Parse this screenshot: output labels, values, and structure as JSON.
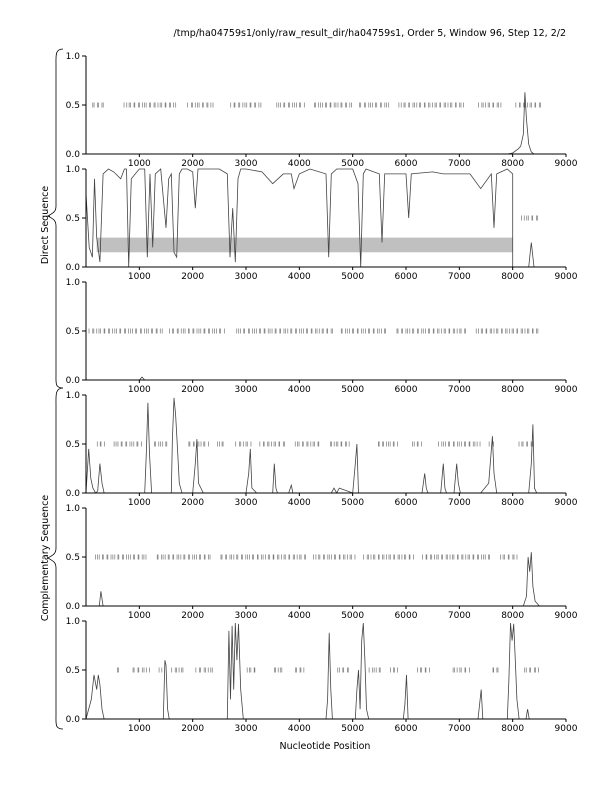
{
  "header": {
    "text": "/tmp/ha04759s1/only/raw_result_dir/ha04759s1, Order 5, Window 96, Step 12, 2/2"
  },
  "group_labels": {
    "top": "Direct Sequence",
    "bottom": "Complementary Sequence"
  },
  "xlabel": "Nucleotide Position",
  "colors": {
    "trace": "#444444",
    "frame": "#000000",
    "highlight": "#c0c0c0",
    "tick_marks": "#777777"
  },
  "chart_data": [
    {
      "type": "line",
      "panel": 1,
      "xlim": [
        0,
        9000
      ],
      "ylim": [
        0,
        1.0
      ],
      "xticks": [
        1000,
        2000,
        3000,
        4000,
        5000,
        6000,
        7000,
        8000,
        9000
      ],
      "yticks": [
        0.0,
        0.5,
        1.0
      ],
      "series": [
        {
          "x": [
            0,
            7900,
            8000,
            8100,
            8150,
            8200,
            8230,
            8260,
            8300,
            8350,
            8400,
            9000
          ],
          "y": [
            0,
            0,
            0.01,
            0.05,
            0.08,
            0.2,
            0.63,
            0.35,
            0.1,
            0.02,
            0,
            0
          ]
        }
      ],
      "tick_rows": [
        {
          "y": 0.5,
          "x_ranges": [
            [
              100,
              350
            ],
            [
              700,
              1700
            ],
            [
              1900,
              2400
            ],
            [
              2700,
              3300
            ],
            [
              3550,
              4100
            ],
            [
              4250,
              5000
            ],
            [
              5100,
              5700
            ],
            [
              5850,
              7100
            ],
            [
              7350,
              7800
            ],
            [
              8050,
              8550
            ]
          ]
        }
      ]
    },
    {
      "type": "line",
      "panel": 2,
      "xlim": [
        0,
        9000
      ],
      "ylim": [
        0,
        1.0
      ],
      "xticks": [
        1000,
        2000,
        3000,
        4000,
        5000,
        6000,
        7000,
        8000,
        9000
      ],
      "yticks": [
        0.0,
        0.5,
        1.0
      ],
      "highlight_band": {
        "x": [
          200,
          8000
        ],
        "y": [
          0.15,
          0.3
        ]
      },
      "series": [
        {
          "x": [
            0,
            60,
            120,
            160,
            200,
            260,
            320,
            420,
            520,
            650,
            720,
            760,
            800,
            850,
            1000,
            1100,
            1150,
            1200,
            1250,
            1300,
            1400,
            1500,
            1550,
            1600,
            1650,
            1700,
            1750,
            1800,
            1900,
            2000,
            2050,
            2100,
            2200,
            2500,
            2650,
            2700,
            2750,
            2800,
            2850,
            2900,
            3000,
            3300,
            3500,
            3700,
            3850,
            3900,
            4000,
            4200,
            4500,
            4550,
            4600,
            4700,
            5000,
            5100,
            5150,
            5200,
            5250,
            5500,
            5550,
            5600,
            6000,
            6050,
            6100,
            6500,
            6700,
            7200,
            7400,
            7600,
            7650,
            7700,
            7900,
            8000,
            8000,
            8100,
            8300,
            8350,
            8400,
            9000
          ],
          "y": [
            0.75,
            0.2,
            0.1,
            0.9,
            0.3,
            0.05,
            0.95,
            1.0,
            0.97,
            0.9,
            1.0,
            1.0,
            0.0,
            0.9,
            1.0,
            1.0,
            0.1,
            0.95,
            0.2,
            0.95,
            1.0,
            0.4,
            0.9,
            0.95,
            0.15,
            0.1,
            0.95,
            1.0,
            1.0,
            0.97,
            0.6,
            1.0,
            1.0,
            1.0,
            0.95,
            0.1,
            0.6,
            0.05,
            0.9,
            1.0,
            1.0,
            0.97,
            0.85,
            0.95,
            0.95,
            0.8,
            0.95,
            1.0,
            0.95,
            0.1,
            0.95,
            1.0,
            1.0,
            0.85,
            0.0,
            0.95,
            1.0,
            0.95,
            0.25,
            0.95,
            0.95,
            0.5,
            0.95,
            0.97,
            0.95,
            0.95,
            0.8,
            0.95,
            0.4,
            0.95,
            1.0,
            0.95,
            0.0,
            0.0,
            0.0,
            0.25,
            0.0,
            0.0
          ]
        }
      ],
      "tick_rows": [
        {
          "y": 0.5,
          "x_ranges": [
            [
              8150,
              8500
            ]
          ]
        }
      ]
    },
    {
      "type": "line",
      "panel": 3,
      "xlim": [
        0,
        9000
      ],
      "ylim": [
        0,
        1.0
      ],
      "xticks": [
        1000,
        2000,
        3000,
        4000,
        5000,
        6000,
        7000,
        8000,
        9000
      ],
      "yticks": [
        0.0,
        0.5,
        1.0
      ],
      "series": [
        {
          "x": [
            0,
            1000,
            1050,
            1100,
            9000
          ],
          "y": [
            0,
            0,
            0.03,
            0,
            0
          ]
        }
      ],
      "tick_rows": [
        {
          "y": 0.5,
          "x_ranges": [
            [
              50,
              1450
            ],
            [
              1550,
              2600
            ],
            [
              2800,
              4650
            ],
            [
              4750,
              5650
            ],
            [
              5800,
              7150
            ],
            [
              7300,
              8500
            ]
          ]
        }
      ]
    },
    {
      "type": "line",
      "panel": 4,
      "xlim": [
        0,
        9000
      ],
      "ylim": [
        0,
        1.0
      ],
      "xticks": [
        1000,
        2000,
        3000,
        4000,
        5000,
        6000,
        7000,
        8000,
        9000
      ],
      "yticks": [
        0.0,
        0.5,
        1.0
      ],
      "series": [
        {
          "x": [
            0,
            50,
            90,
            130,
            180,
            220,
            260,
            300,
            340,
            400,
            1100,
            1130,
            1160,
            1190,
            1230,
            1600,
            1620,
            1650,
            1680,
            1700,
            1750,
            1800,
            2000,
            2050,
            2080,
            2110,
            2200,
            3000,
            3050,
            3080,
            3110,
            3200,
            3500,
            3530,
            3560,
            3590,
            3800,
            3850,
            3880,
            4600,
            4650,
            4700,
            4750,
            5000,
            5050,
            5080,
            5110,
            6300,
            6350,
            6380,
            6410,
            6650,
            6700,
            6730,
            6760,
            6900,
            6950,
            6980,
            7020,
            7400,
            7550,
            7620,
            7650,
            7700,
            8300,
            8350,
            8380,
            8410,
            8450,
            9000
          ],
          "y": [
            0,
            0.45,
            0.15,
            0.05,
            0.0,
            0.02,
            0.3,
            0.1,
            0.0,
            0.0,
            0.0,
            0.4,
            0.92,
            0.4,
            0.0,
            0.0,
            0.55,
            0.97,
            0.8,
            0.6,
            0.1,
            0.0,
            0.0,
            0.3,
            0.55,
            0.1,
            0.0,
            0.0,
            0.2,
            0.45,
            0.05,
            0.0,
            0.0,
            0.3,
            0.05,
            0.0,
            0.0,
            0.08,
            0.0,
            0.0,
            0.05,
            0.0,
            0.05,
            0.0,
            0.3,
            0.5,
            0.0,
            0.0,
            0.2,
            0.05,
            0.0,
            0.0,
            0.3,
            0.05,
            0.0,
            0.0,
            0.3,
            0.1,
            0.0,
            0.0,
            0.1,
            0.58,
            0.2,
            0.0,
            0.0,
            0.3,
            0.7,
            0.05,
            0.0,
            0.0
          ]
        }
      ],
      "tick_rows": [
        {
          "y": 0.5,
          "x_ranges": [
            [
              200,
              350
            ],
            [
              500,
              1050
            ],
            [
              1250,
              1550
            ],
            [
              1900,
              2300
            ],
            [
              2450,
              2600
            ],
            [
              2800,
              3100
            ],
            [
              3250,
              3750
            ],
            [
              3900,
              4400
            ],
            [
              4550,
              4950
            ],
            [
              5450,
              5850
            ],
            [
              6100,
              6300
            ],
            [
              6600,
              7400
            ],
            [
              7550,
              7650
            ],
            [
              8100,
              8400
            ]
          ]
        }
      ]
    },
    {
      "type": "line",
      "panel": 5,
      "xlim": [
        0,
        9000
      ],
      "ylim": [
        0,
        1.0
      ],
      "xticks": [
        1000,
        2000,
        3000,
        4000,
        5000,
        6000,
        7000,
        8000,
        9000
      ],
      "yticks": [
        0.0,
        0.5,
        1.0
      ],
      "series": [
        {
          "x": [
            0,
            250,
            280,
            320,
            8200,
            8260,
            8290,
            8320,
            8350,
            8380,
            8420,
            8500,
            9000
          ],
          "y": [
            0,
            0,
            0.15,
            0,
            0,
            0.1,
            0.5,
            0.35,
            0.55,
            0.2,
            0.05,
            0,
            0
          ]
        }
      ],
      "tick_rows": [
        {
          "y": 0.5,
          "x_ranges": [
            [
              150,
              1150
            ],
            [
              1300,
              2350
            ],
            [
              2500,
              4150
            ],
            [
              4250,
              5050
            ],
            [
              5200,
              6150
            ],
            [
              6300,
              7600
            ],
            [
              7750,
              8100
            ]
          ]
        }
      ]
    },
    {
      "type": "line",
      "panel": 6,
      "xlim": [
        0,
        9000
      ],
      "ylim": [
        0,
        1.0
      ],
      "xticks": [
        1000,
        2000,
        3000,
        4000,
        5000,
        6000,
        7000,
        8000,
        9000
      ],
      "yticks": [
        0.0,
        0.5,
        1.0
      ],
      "series": [
        {
          "x": [
            0,
            100,
            150,
            200,
            230,
            260,
            300,
            340,
            400,
            1450,
            1480,
            1500,
            1530,
            1560,
            2650,
            2680,
            2710,
            2740,
            2770,
            2800,
            2830,
            2860,
            2900,
            2950,
            4500,
            4530,
            4560,
            4590,
            4620,
            5050,
            5080,
            5110,
            5140,
            5170,
            5200,
            5230,
            5260,
            5300,
            5950,
            5980,
            6010,
            6040,
            7350,
            7380,
            7410,
            7440,
            7900,
            7930,
            7960,
            7990,
            8020,
            8050,
            8080,
            8120,
            8250,
            8280,
            8310,
            9000
          ],
          "y": [
            0,
            0.2,
            0.45,
            0.3,
            0.45,
            0.35,
            0.1,
            0.0,
            0.0,
            0.0,
            0.6,
            0.55,
            0.1,
            0.0,
            0.0,
            0.9,
            0.2,
            0.95,
            0.3,
            0.98,
            0.6,
            0.97,
            0.3,
            0.0,
            0.0,
            0.2,
            0.88,
            0.3,
            0.0,
            0.0,
            0.3,
            0.5,
            0.1,
            0.8,
            0.98,
            0.6,
            0.1,
            0.0,
            0.0,
            0.15,
            0.45,
            0.0,
            0.0,
            0.15,
            0.3,
            0.0,
            0.0,
            0.4,
            0.98,
            0.8,
            0.97,
            0.6,
            0.2,
            0.0,
            0.0,
            0.1,
            0.0,
            0.0
          ]
        }
      ],
      "tick_rows": [
        {
          "y": 0.5,
          "x_ranges": [
            [
              550,
              650
            ],
            [
              850,
              1200
            ],
            [
              1350,
              1450
            ],
            [
              1600,
              1850
            ],
            [
              2050,
              2400
            ],
            [
              3000,
              3200
            ],
            [
              3500,
              3700
            ],
            [
              3900,
              4100
            ],
            [
              4700,
              4950
            ],
            [
              5300,
              5550
            ],
            [
              5700,
              5850
            ],
            [
              6200,
              6450
            ],
            [
              6850,
              7200
            ],
            [
              7600,
              7750
            ],
            [
              8200,
              8500
            ]
          ]
        }
      ]
    }
  ]
}
